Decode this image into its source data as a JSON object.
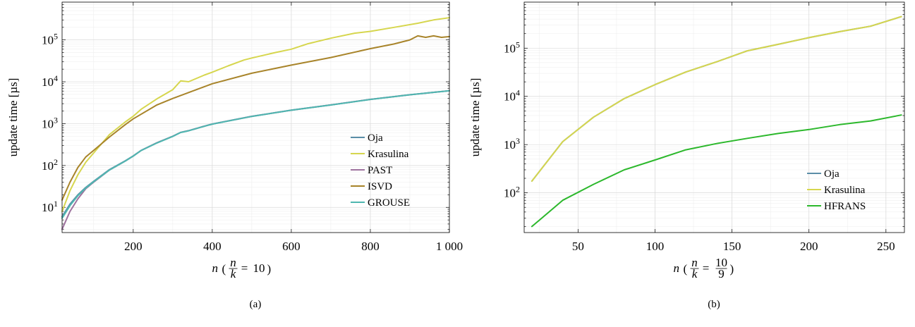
{
  "chart_data": [
    {
      "type": "line",
      "caption": "(a)",
      "xlabel_var": "n",
      "xlabel_ratio_num": "n",
      "xlabel_ratio_den": "k",
      "xlabel_ratio_value": "10",
      "ylabel": "update time [µs]",
      "yscale": "log",
      "xlim": [
        20,
        1000
      ],
      "ylim": [
        2.5,
        800000
      ],
      "xticks": [
        200,
        400,
        600,
        800,
        1000
      ],
      "xtick_labels": [
        "200",
        "400",
        "600",
        "800",
        "1 000"
      ],
      "yticks": [
        10,
        100,
        1000,
        10000,
        100000
      ],
      "ytick_base": "10",
      "ytick_exponents": [
        "1",
        "2",
        "3",
        "4",
        "5"
      ],
      "grid": true,
      "legend_position": "lower-right",
      "series": [
        {
          "name": "Oja",
          "color": "#5b8ea8",
          "x": [
            20,
            40,
            60,
            80,
            100,
            140,
            180,
            200,
            220,
            260,
            300,
            320,
            340,
            380,
            400,
            500,
            600,
            700,
            800,
            900,
            1000
          ],
          "y": [
            6,
            12,
            20,
            30,
            42,
            80,
            130,
            170,
            230,
            350,
            500,
            620,
            680,
            870,
            980,
            1500,
            2100,
            2800,
            3800,
            4900,
            6100
          ]
        },
        {
          "name": "Krasulina",
          "color": "#d6d64e",
          "x": [
            20,
            40,
            60,
            80,
            100,
            140,
            180,
            200,
            220,
            260,
            300,
            320,
            340,
            380,
            400,
            440,
            480,
            500,
            560,
            600,
            640,
            700,
            760,
            800,
            860,
            920,
            960,
            1000
          ],
          "y": [
            8,
            25,
            60,
            120,
            200,
            550,
            1100,
            1500,
            2200,
            3900,
            6500,
            10500,
            10000,
            14500,
            17000,
            24000,
            33000,
            37000,
            50000,
            60000,
            80000,
            110000,
            145000,
            160000,
            200000,
            250000,
            300000,
            340000
          ]
        },
        {
          "name": "PAST",
          "color": "#9e729e",
          "x": [
            20,
            40,
            60,
            80,
            100,
            140,
            180,
            200,
            220,
            260,
            300,
            320,
            340,
            380,
            400,
            500,
            600,
            700,
            800,
            900,
            1000
          ],
          "y": [
            3,
            8,
            16,
            28,
            40,
            78,
            128,
            168,
            228,
            348,
            498,
            618,
            678,
            868,
            978,
            1495,
            2095,
            2795,
            3795,
            4895,
            6095
          ]
        },
        {
          "name": "ISVD",
          "color": "#a8842a",
          "x": [
            20,
            40,
            60,
            80,
            100,
            140,
            180,
            200,
            260,
            300,
            400,
            500,
            600,
            700,
            800,
            860,
            900,
            920,
            940,
            960,
            980,
            1000
          ],
          "y": [
            15,
            40,
            90,
            160,
            230,
            480,
            950,
            1300,
            2800,
            4000,
            9000,
            16000,
            25000,
            38000,
            62000,
            80000,
            100000,
            125000,
            115000,
            125000,
            115000,
            120000
          ]
        },
        {
          "name": "GROUSE",
          "color": "#4fb7b0",
          "x": [
            20,
            40,
            60,
            80,
            100,
            140,
            180,
            200,
            220,
            260,
            300,
            320,
            340,
            380,
            400,
            500,
            600,
            700,
            800,
            900,
            1000
          ],
          "y": [
            5.5,
            11,
            19,
            29,
            41,
            78,
            128,
            168,
            228,
            345,
            495,
            615,
            675,
            865,
            975,
            1490,
            2090,
            2790,
            3790,
            4890,
            6090
          ]
        }
      ]
    },
    {
      "type": "line",
      "caption": "(b)",
      "xlabel_var": "n",
      "xlabel_ratio_num": "n",
      "xlabel_ratio_den": "k",
      "xlabel_frac_num": "10",
      "xlabel_frac_den": "9",
      "ylabel": "update time [µs]",
      "yscale": "log",
      "xlim": [
        15,
        262
      ],
      "ylim": [
        15,
        900000
      ],
      "xticks": [
        50,
        100,
        150,
        200,
        250
      ],
      "xtick_labels": [
        "50",
        "100",
        "150",
        "200",
        "250"
      ],
      "yticks": [
        100,
        1000,
        10000,
        100000
      ],
      "ytick_base": "10",
      "ytick_exponents": [
        "2",
        "3",
        "4",
        "5"
      ],
      "grid": true,
      "legend_position": "lower-right",
      "series": [
        {
          "name": "Oja",
          "color": "#5b8ea8",
          "x": [
            20,
            40,
            60,
            80,
            100,
            120,
            140,
            160,
            180,
            200,
            220,
            240,
            260
          ],
          "y": [
            175,
            1150,
            3700,
            9000,
            17500,
            32000,
            52000,
            88000,
            120000,
            165000,
            220000,
            285000,
            450000
          ]
        },
        {
          "name": "Krasulina",
          "color": "#d6d64e",
          "x": [
            20,
            40,
            60,
            80,
            100,
            120,
            140,
            160,
            180,
            200,
            220,
            240,
            260
          ],
          "y": [
            175,
            1150,
            3700,
            9000,
            17500,
            32000,
            52000,
            88000,
            120000,
            165000,
            220000,
            285000,
            450000
          ]
        },
        {
          "name": "HFRANS",
          "color": "#2cb82c",
          "x": [
            20,
            40,
            60,
            80,
            100,
            120,
            140,
            160,
            180,
            200,
            220,
            240,
            260
          ],
          "y": [
            20,
            70,
            150,
            300,
            480,
            780,
            1050,
            1350,
            1700,
            2050,
            2600,
            3100,
            4100
          ]
        }
      ]
    }
  ]
}
